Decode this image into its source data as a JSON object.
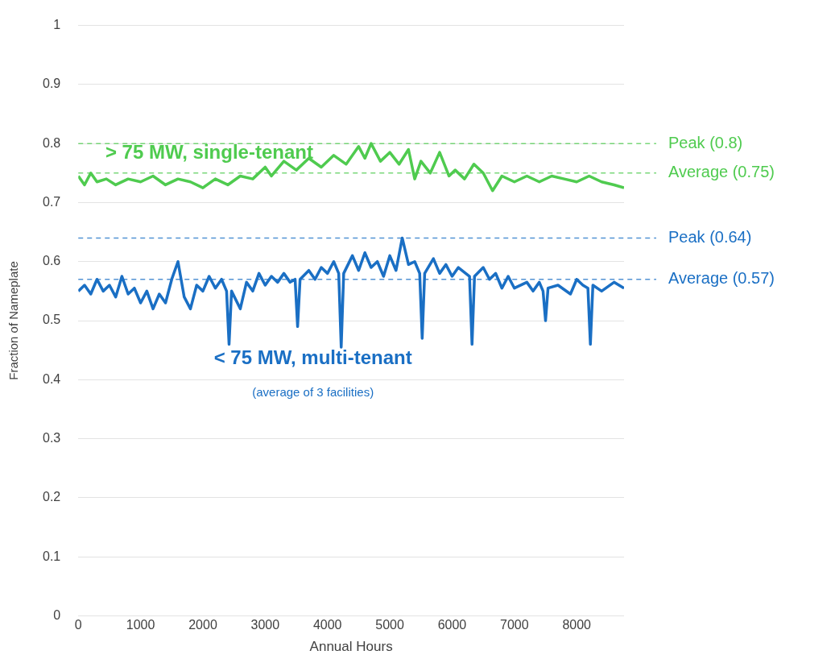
{
  "chart_data": {
    "type": "line",
    "xlabel": "Annual Hours",
    "ylabel": "Fraction of Nameplate",
    "xlim": [
      0,
      8760
    ],
    "xticks": [
      0,
      1000,
      2000,
      3000,
      4000,
      5000,
      6000,
      7000,
      8000
    ],
    "ylim": [
      0,
      1
    ],
    "yticks": [
      0,
      0.1,
      0.2,
      0.3,
      0.4,
      0.5,
      0.6,
      0.7,
      0.8,
      0.9,
      1
    ],
    "grid": "y",
    "legend": false,
    "marker": "none",
    "line_style": "solid",
    "series": [
      {
        "name": "> 75 MW, single-tenant",
        "color": "#4fcb4f",
        "x": [
          0,
          100,
          200,
          300,
          450,
          600,
          800,
          1000,
          1200,
          1400,
          1600,
          1800,
          2000,
          2200,
          2400,
          2600,
          2800,
          3000,
          3100,
          3300,
          3500,
          3700,
          3900,
          4100,
          4300,
          4500,
          4600,
          4700,
          4850,
          5000,
          5150,
          5300,
          5400,
          5500,
          5650,
          5800,
          5950,
          6050,
          6200,
          6350,
          6500,
          6650,
          6800,
          7000,
          7200,
          7400,
          7600,
          7800,
          8000,
          8200,
          8400,
          8600,
          8760
        ],
        "values": [
          0.745,
          0.73,
          0.75,
          0.735,
          0.74,
          0.73,
          0.74,
          0.735,
          0.745,
          0.73,
          0.74,
          0.735,
          0.725,
          0.74,
          0.73,
          0.745,
          0.74,
          0.76,
          0.745,
          0.77,
          0.755,
          0.775,
          0.76,
          0.78,
          0.765,
          0.795,
          0.775,
          0.8,
          0.77,
          0.785,
          0.765,
          0.79,
          0.74,
          0.77,
          0.75,
          0.785,
          0.745,
          0.755,
          0.74,
          0.765,
          0.75,
          0.72,
          0.745,
          0.735,
          0.745,
          0.735,
          0.745,
          0.74,
          0.735,
          0.745,
          0.735,
          0.73,
          0.725
        ]
      },
      {
        "name": "< 75 MW, multi-tenant",
        "color": "#1a6fc4",
        "x": [
          0,
          100,
          200,
          300,
          400,
          500,
          600,
          700,
          800,
          900,
          1000,
          1100,
          1200,
          1300,
          1400,
          1500,
          1600,
          1700,
          1800,
          1900,
          2000,
          2100,
          2200,
          2300,
          2380,
          2420,
          2460,
          2600,
          2700,
          2800,
          2900,
          3000,
          3100,
          3200,
          3300,
          3400,
          3480,
          3520,
          3560,
          3700,
          3800,
          3900,
          4000,
          4100,
          4180,
          4220,
          4260,
          4400,
          4500,
          4600,
          4700,
          4800,
          4900,
          5000,
          5100,
          5200,
          5300,
          5400,
          5480,
          5520,
          5560,
          5700,
          5800,
          5900,
          6000,
          6100,
          6280,
          6320,
          6360,
          6500,
          6600,
          6700,
          6800,
          6900,
          7000,
          7200,
          7300,
          7400,
          7460,
          7500,
          7540,
          7700,
          7900,
          8000,
          8100,
          8180,
          8220,
          8260,
          8400,
          8600,
          8760
        ],
        "values": [
          0.55,
          0.56,
          0.545,
          0.57,
          0.55,
          0.56,
          0.54,
          0.575,
          0.545,
          0.555,
          0.53,
          0.55,
          0.52,
          0.545,
          0.53,
          0.57,
          0.6,
          0.54,
          0.52,
          0.56,
          0.55,
          0.575,
          0.555,
          0.57,
          0.55,
          0.46,
          0.55,
          0.52,
          0.565,
          0.55,
          0.58,
          0.56,
          0.575,
          0.565,
          0.58,
          0.565,
          0.57,
          0.49,
          0.57,
          0.585,
          0.57,
          0.59,
          0.58,
          0.6,
          0.58,
          0.455,
          0.58,
          0.61,
          0.585,
          0.615,
          0.59,
          0.6,
          0.575,
          0.61,
          0.585,
          0.64,
          0.595,
          0.6,
          0.58,
          0.47,
          0.58,
          0.605,
          0.58,
          0.595,
          0.575,
          0.59,
          0.575,
          0.46,
          0.575,
          0.59,
          0.57,
          0.58,
          0.555,
          0.575,
          0.555,
          0.565,
          0.55,
          0.565,
          0.55,
          0.5,
          0.555,
          0.56,
          0.545,
          0.57,
          0.56,
          0.555,
          0.46,
          0.56,
          0.55,
          0.565,
          0.555
        ]
      }
    ],
    "ref_lines": [
      {
        "axis": "y",
        "value": 0.8,
        "label": "Peak (0.8)",
        "color": "#4fcb4f",
        "line_style": "dashed"
      },
      {
        "axis": "y",
        "value": 0.75,
        "label": "Average (0.75)",
        "color": "#4fcb4f",
        "line_style": "dashed"
      },
      {
        "axis": "y",
        "value": 0.64,
        "label": "Peak (0.64)",
        "color": "#1a6fc4",
        "line_style": "dashed"
      },
      {
        "axis": "y",
        "value": 0.57,
        "label": "Average (0.57)",
        "color": "#1a6fc4",
        "line_style": "dashed"
      }
    ],
    "annotations": [
      "(average of 3 facilities)"
    ]
  }
}
